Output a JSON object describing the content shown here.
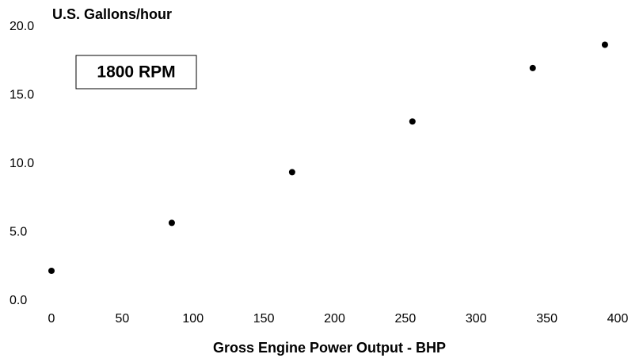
{
  "chart_data": {
    "type": "scatter",
    "y_label": "U.S. Gallons/hour",
    "x_label": "Gross Engine Power Output - BHP",
    "annotation": "1800 RPM",
    "x": [
      0,
      85,
      170,
      255,
      340,
      391
    ],
    "values": [
      2.2,
      5.7,
      9.4,
      13.1,
      17.0,
      18.7
    ],
    "color": "#000000",
    "xlim": [
      0,
      400
    ],
    "xticks": [
      0,
      50,
      100,
      150,
      200,
      250,
      300,
      350,
      400
    ],
    "ylim": [
      0,
      20
    ],
    "yticks": [
      {
        "value": 0,
        "label": "0.0"
      },
      {
        "value": 5,
        "label": "5.0"
      },
      {
        "value": 10,
        "label": "10.0"
      },
      {
        "value": 15,
        "label": "15.0"
      },
      {
        "value": 20,
        "label": "20.0"
      }
    ]
  }
}
